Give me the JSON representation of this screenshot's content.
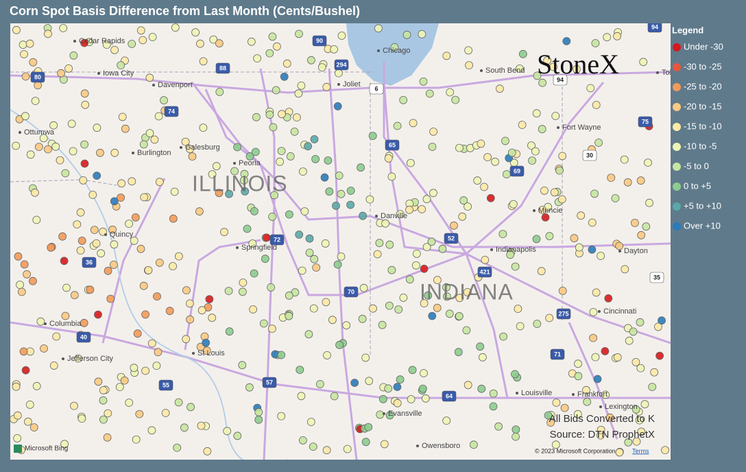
{
  "header": {
    "title": "Corn Spot Basis Difference from Last Month (Cents/Bushel)"
  },
  "logo": "StoneX",
  "legend": {
    "title": "Legend",
    "items": [
      {
        "label": "Under -30",
        "color": "#d7191c"
      },
      {
        "label": "-30 to -25",
        "color": "#e8573a"
      },
      {
        "label": "-25 to -20",
        "color": "#f39a58"
      },
      {
        "label": "-20 to -15",
        "color": "#fbc982"
      },
      {
        "label": "-15 to -10",
        "color": "#fde9a6"
      },
      {
        "label": "-10 to -5",
        "color": "#eef5b4"
      },
      {
        "label": "-5 to 0",
        "color": "#c6e6a0"
      },
      {
        "label": "0 to +5",
        "color": "#8ccc8e"
      },
      {
        "label": "+5 to +10",
        "color": "#5aa8a8"
      },
      {
        "label": "Over +10",
        "color": "#2b7bba"
      }
    ]
  },
  "map": {
    "cities": [
      "Cedar Rapids",
      "Iowa City",
      "Davenport",
      "Chicago",
      "South Bend",
      "Joliet",
      "Ottumwa",
      "Burlington",
      "Galesburg",
      "Peoria",
      "Fort Wayne",
      "Muncie",
      "Danville",
      "Springfield",
      "Quincy",
      "Indianapolis",
      "Dayton",
      "Columbia",
      "Cincinnati",
      "Jefferson City",
      "St Louis",
      "Louisville",
      "Frankfort",
      "Lexington",
      "Evansville",
      "Owensboro",
      "Toledo"
    ],
    "states": [
      "ILLINOIS",
      "INDIANA"
    ],
    "highways": [
      "80",
      "88",
      "90",
      "94",
      "294",
      "74",
      "55",
      "57",
      "65",
      "69",
      "70",
      "72",
      "36",
      "52",
      "421",
      "275",
      "71",
      "64",
      "40",
      "75",
      "35",
      "30",
      "6",
      "94"
    ]
  },
  "notes": [
    "All Bids Converted to K",
    "Source: DTN ProphetX"
  ],
  "attribution": {
    "bing": "Microsoft Bing",
    "copyright": "© 2023 Microsoft Corporation",
    "terms": "Terms"
  }
}
